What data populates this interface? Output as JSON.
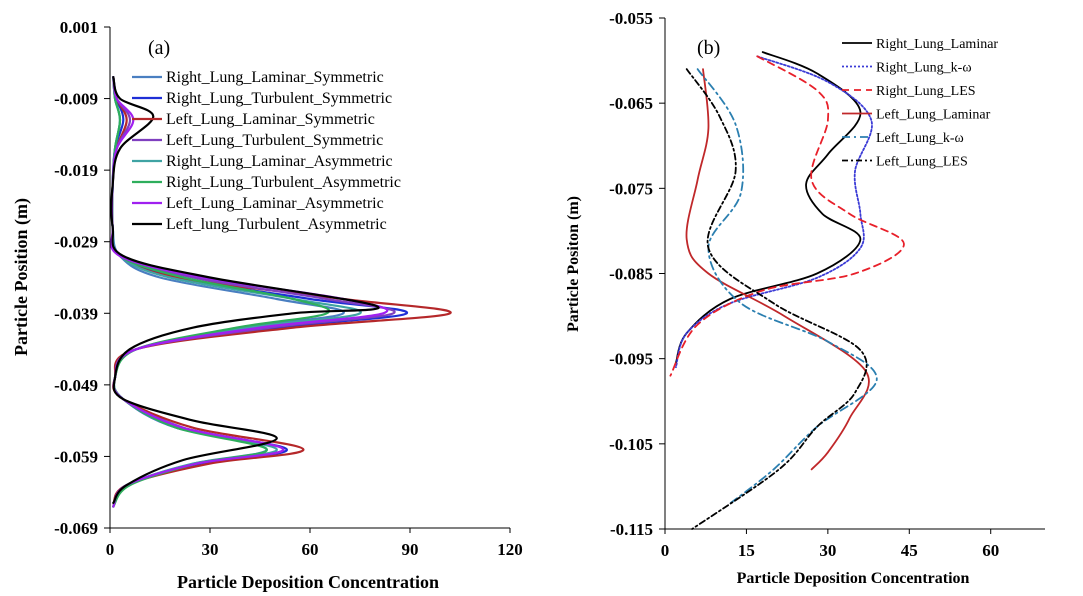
{
  "chart_data": [
    {
      "type": "line",
      "panel_label": "(a)",
      "xlabel": "Particle Deposition Concentration",
      "ylabel": "Particle Position (m)",
      "xlim": [
        0,
        120
      ],
      "ylim": [
        -0.069,
        0.001
      ],
      "xticks": [
        "0",
        "30",
        "60",
        "90",
        "120"
      ],
      "yticks": [
        "0.001",
        "-0.009",
        "-0.019",
        "-0.029",
        "-0.039",
        "-0.049",
        "-0.059",
        "-0.069"
      ],
      "legend_position": "top-right",
      "series": [
        {
          "name": "Right_Lung_Laminar_Symmetric",
          "color": "#4a7fc1",
          "dash": "solid",
          "points": [
            [
              1,
              -0.006
            ],
            [
              1.5,
              -0.009
            ],
            [
              3,
              -0.012
            ],
            [
              1.5,
              -0.016
            ],
            [
              0.8,
              -0.021
            ],
            [
              0.8,
              -0.027
            ],
            [
              3,
              -0.031
            ],
            [
              15,
              -0.034
            ],
            [
              50,
              -0.037
            ],
            [
              70,
              -0.039
            ],
            [
              40,
              -0.041
            ],
            [
              8,
              -0.044
            ],
            [
              1.5,
              -0.048
            ],
            [
              4,
              -0.051
            ],
            [
              22,
              -0.055
            ],
            [
              47,
              -0.058
            ],
            [
              25,
              -0.06
            ],
            [
              5,
              -0.063
            ],
            [
              1,
              -0.066
            ]
          ]
        },
        {
          "name": "Right_Lung_Turbulent_Symmetric",
          "color": "#1e2fd6",
          "dash": "solid",
          "points": [
            [
              1,
              -0.006
            ],
            [
              2,
              -0.009
            ],
            [
              4,
              -0.012
            ],
            [
              1.5,
              -0.016
            ],
            [
              0.8,
              -0.021
            ],
            [
              0.8,
              -0.027
            ],
            [
              3,
              -0.031
            ],
            [
              20,
              -0.034
            ],
            [
              60,
              -0.037
            ],
            [
              89,
              -0.039
            ],
            [
              50,
              -0.041
            ],
            [
              8,
              -0.044
            ],
            [
              1.5,
              -0.048
            ],
            [
              4,
              -0.051
            ],
            [
              20,
              -0.055
            ],
            [
              53,
              -0.058
            ],
            [
              27,
              -0.06
            ],
            [
              5,
              -0.063
            ],
            [
              1,
              -0.066
            ]
          ]
        },
        {
          "name": "Left_Lung_Laminar_Symmetric",
          "color": "#b5282a",
          "dash": "solid",
          "points": [
            [
              1,
              -0.006
            ],
            [
              2,
              -0.009
            ],
            [
              5,
              -0.012
            ],
            [
              2,
              -0.016
            ],
            [
              0.8,
              -0.021
            ],
            [
              0.8,
              -0.027
            ],
            [
              3,
              -0.031
            ],
            [
              20,
              -0.034
            ],
            [
              70,
              -0.037
            ],
            [
              102,
              -0.039
            ],
            [
              55,
              -0.041
            ],
            [
              8,
              -0.044
            ],
            [
              1.5,
              -0.048
            ],
            [
              4,
              -0.051
            ],
            [
              25,
              -0.055
            ],
            [
              58,
              -0.058
            ],
            [
              30,
              -0.06
            ],
            [
              5,
              -0.063
            ],
            [
              1,
              -0.066
            ]
          ]
        },
        {
          "name": "Left_Lung_Turbulent_Symmetric",
          "color": "#7f3fbf",
          "dash": "solid",
          "points": [
            [
              1,
              -0.006
            ],
            [
              2,
              -0.009
            ],
            [
              6,
              -0.012
            ],
            [
              2,
              -0.016
            ],
            [
              0.8,
              -0.021
            ],
            [
              0.8,
              -0.027
            ],
            [
              3,
              -0.031
            ],
            [
              25,
              -0.034
            ],
            [
              65,
              -0.037
            ],
            [
              85,
              -0.039
            ],
            [
              48,
              -0.041
            ],
            [
              8,
              -0.044
            ],
            [
              1.5,
              -0.048
            ],
            [
              4,
              -0.051
            ],
            [
              22,
              -0.055
            ],
            [
              52,
              -0.058
            ],
            [
              26,
              -0.06
            ],
            [
              5,
              -0.063
            ],
            [
              1,
              -0.066
            ]
          ]
        },
        {
          "name": "Right_Lung_Laminar_Asymmetric",
          "color": "#3fa3a3",
          "dash": "solid",
          "points": [
            [
              1,
              -0.006
            ],
            [
              1.5,
              -0.009
            ],
            [
              3,
              -0.012
            ],
            [
              1.5,
              -0.016
            ],
            [
              0.8,
              -0.021
            ],
            [
              0.8,
              -0.027
            ],
            [
              3,
              -0.031
            ],
            [
              18,
              -0.034
            ],
            [
              55,
              -0.037
            ],
            [
              75,
              -0.039
            ],
            [
              42,
              -0.041
            ],
            [
              8,
              -0.044
            ],
            [
              1.5,
              -0.048
            ],
            [
              4,
              -0.051
            ],
            [
              20,
              -0.055
            ],
            [
              50,
              -0.058
            ],
            [
              25,
              -0.06
            ],
            [
              5,
              -0.063
            ],
            [
              1,
              -0.066
            ]
          ]
        },
        {
          "name": "Right_Lung_Turbulent_Asymmetric",
          "color": "#2eae5c",
          "dash": "solid",
          "points": [
            [
              1,
              -0.006
            ],
            [
              1.5,
              -0.009
            ],
            [
              3,
              -0.012
            ],
            [
              1.5,
              -0.016
            ],
            [
              0.8,
              -0.021
            ],
            [
              0.8,
              -0.027
            ],
            [
              3,
              -0.031
            ],
            [
              22,
              -0.034
            ],
            [
              55,
              -0.037
            ],
            [
              65,
              -0.039
            ],
            [
              38,
              -0.041
            ],
            [
              8,
              -0.044
            ],
            [
              1.5,
              -0.048
            ],
            [
              4,
              -0.051
            ],
            [
              20,
              -0.055
            ],
            [
              47,
              -0.058
            ],
            [
              26,
              -0.06
            ],
            [
              6,
              -0.063
            ],
            [
              1,
              -0.066
            ]
          ]
        },
        {
          "name": "Left_Lung_Laminar_Asymmetric",
          "color": "#a020f0",
          "dash": "solid",
          "points": [
            [
              1,
              -0.006
            ],
            [
              2,
              -0.009
            ],
            [
              7,
              -0.012
            ],
            [
              2,
              -0.016
            ],
            [
              0.8,
              -0.021
            ],
            [
              0.8,
              -0.027
            ],
            [
              3,
              -0.031
            ],
            [
              28,
              -0.034
            ],
            [
              70,
              -0.037
            ],
            [
              82,
              -0.039
            ],
            [
              45,
              -0.041
            ],
            [
              8,
              -0.044
            ],
            [
              1.5,
              -0.048
            ],
            [
              4,
              -0.051
            ],
            [
              22,
              -0.055
            ],
            [
              52,
              -0.058
            ],
            [
              26,
              -0.06
            ],
            [
              5,
              -0.063
            ],
            [
              1,
              -0.066
            ]
          ]
        },
        {
          "name": "Left_lung_Turbulent_Asymmetric",
          "color": "#000000",
          "dash": "solid",
          "points": [
            [
              1,
              -0.006
            ],
            [
              3,
              -0.009
            ],
            [
              13,
              -0.0115
            ],
            [
              3,
              -0.016
            ],
            [
              0.8,
              -0.021
            ],
            [
              0.8,
              -0.027
            ],
            [
              4,
              -0.031
            ],
            [
              30,
              -0.034
            ],
            [
              80,
              -0.038
            ],
            [
              55,
              -0.039
            ],
            [
              25,
              -0.041
            ],
            [
              6,
              -0.044
            ],
            [
              1.5,
              -0.048
            ],
            [
              4,
              -0.051
            ],
            [
              25,
              -0.054
            ],
            [
              50,
              -0.0565
            ],
            [
              22,
              -0.0595
            ],
            [
              5,
              -0.063
            ],
            [
              1,
              -0.0655
            ]
          ]
        }
      ]
    },
    {
      "type": "line",
      "panel_label": "(b)",
      "xlabel": "Particle Deposition Concentration",
      "ylabel": "Particle Positon (m)",
      "xlim": [
        0,
        70
      ],
      "ylim": [
        -0.115,
        -0.055
      ],
      "xticks": [
        "0",
        "15",
        "30",
        "45",
        "60"
      ],
      "yticks": [
        "-0.055",
        "-0.065",
        "-0.075",
        "-0.085",
        "-0.095",
        "-0.105",
        "-0.115"
      ],
      "legend_position": "top-right",
      "series": [
        {
          "name": "Right_Lung_Laminar",
          "color": "#000000",
          "dash": "solid",
          "points": [
            [
              18,
              -0.059
            ],
            [
              28,
              -0.0615
            ],
            [
              36,
              -0.066
            ],
            [
              30,
              -0.071
            ],
            [
              26,
              -0.0745
            ],
            [
              29,
              -0.078
            ],
            [
              36,
              -0.081
            ],
            [
              28,
              -0.085
            ],
            [
              12,
              -0.088
            ],
            [
              4,
              -0.092
            ],
            [
              2,
              -0.0955
            ]
          ]
        },
        {
          "name": "Right_Lung_k-ω",
          "color": "#3b3bd6",
          "dash": "2,2",
          "points": [
            [
              17,
              -0.0595
            ],
            [
              30,
              -0.0625
            ],
            [
              38,
              -0.067
            ],
            [
              35,
              -0.073
            ],
            [
              36,
              -0.078
            ],
            [
              36,
              -0.082
            ],
            [
              28,
              -0.0855
            ],
            [
              12,
              -0.0885
            ],
            [
              4,
              -0.092
            ],
            [
              2,
              -0.096
            ]
          ]
        },
        {
          "name": "Right_Lung_LES",
          "color": "#e8202a",
          "dash": "7,5",
          "points": [
            [
              17,
              -0.0595
            ],
            [
              28,
              -0.0635
            ],
            [
              30,
              -0.067
            ],
            [
              27,
              -0.074
            ],
            [
              34,
              -0.078
            ],
            [
              44,
              -0.0815
            ],
            [
              35,
              -0.085
            ],
            [
              18,
              -0.087
            ],
            [
              6,
              -0.091
            ],
            [
              1,
              -0.097
            ]
          ]
        },
        {
          "name": "Left_Lung_Laminar",
          "color": "#c0282a",
          "dash": "solid",
          "points": [
            [
              7,
              -0.061
            ],
            [
              8,
              -0.068
            ],
            [
              6,
              -0.074
            ],
            [
              4,
              -0.081
            ],
            [
              8,
              -0.085
            ],
            [
              22,
              -0.09
            ],
            [
              37,
              -0.0965
            ],
            [
              34,
              -0.102
            ],
            [
              30,
              -0.106
            ],
            [
              27,
              -0.108
            ]
          ]
        },
        {
          "name": "Left_Lung_k-ω",
          "color": "#2b7fb0",
          "dash": "8,4,2,4",
          "points": [
            [
              6,
              -0.061
            ],
            [
              13,
              -0.0675
            ],
            [
              14,
              -0.0755
            ],
            [
              8,
              -0.082
            ],
            [
              14,
              -0.0885
            ],
            [
              30,
              -0.093
            ],
            [
              39,
              -0.0975
            ],
            [
              28,
              -0.103
            ],
            [
              20,
              -0.108
            ],
            [
              12,
              -0.112
            ]
          ]
        },
        {
          "name": "Left_Lung_LES",
          "color": "#000000",
          "dash": "6,3,2,3",
          "points": [
            [
              4,
              -0.061
            ],
            [
              10,
              -0.0665
            ],
            [
              13,
              -0.073
            ],
            [
              8,
              -0.082
            ],
            [
              20,
              -0.0885
            ],
            [
              36,
              -0.094
            ],
            [
              35,
              -0.099
            ],
            [
              28,
              -0.103
            ],
            [
              21,
              -0.108
            ],
            [
              5,
              -0.115
            ]
          ]
        }
      ]
    }
  ]
}
